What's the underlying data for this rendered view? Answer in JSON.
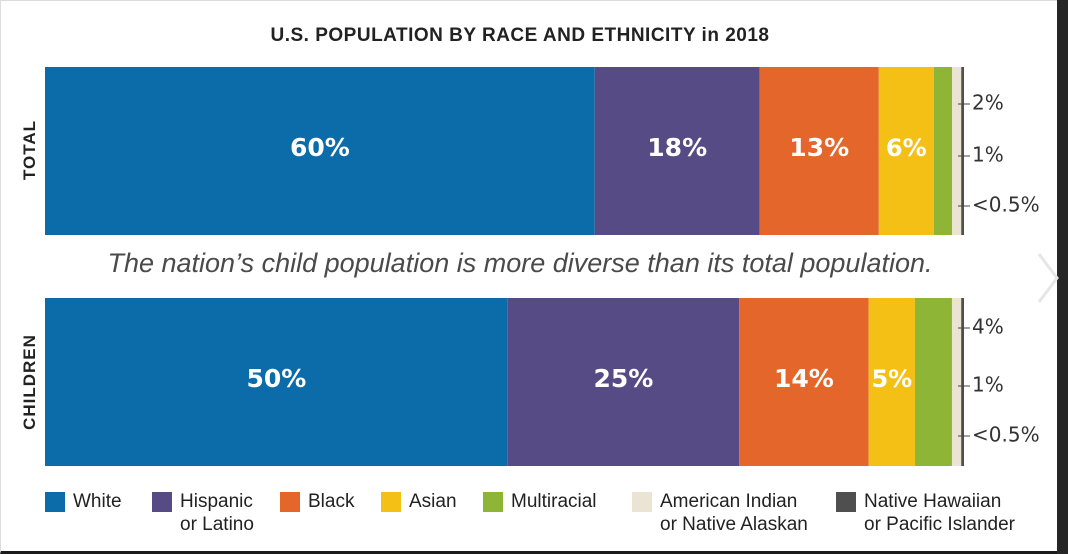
{
  "chart_data": {
    "type": "bar",
    "stacked": true,
    "orientation": "horizontal",
    "title": "U.S. POPULATION BY RACE AND ETHNICITY in 2018",
    "subtitle": "The nation’s child population is more diverse than its total population.",
    "categories": [
      "TOTAL",
      "CHILDREN"
    ],
    "series": [
      {
        "name": "White",
        "color": "#0c6ca9",
        "values": [
          60,
          50
        ],
        "labels": [
          "60%",
          "50%"
        ]
      },
      {
        "name": "Hispanic or Latino",
        "legend_lines": "Hispanic\nor Latino",
        "color": "#564b84",
        "values": [
          18,
          25
        ],
        "labels": [
          "18%",
          "25%"
        ]
      },
      {
        "name": "Black",
        "color": "#e4662a",
        "values": [
          13,
          14
        ],
        "labels": [
          "13%",
          "14%"
        ]
      },
      {
        "name": "Asian",
        "color": "#f4c015",
        "values": [
          6,
          5
        ],
        "labels": [
          "6%",
          "5%"
        ]
      },
      {
        "name": "Multiracial",
        "color": "#8fb536",
        "values": [
          2,
          4
        ],
        "labels": [
          "2%",
          "4%"
        ]
      },
      {
        "name": "American Indian or Native Alaskan",
        "legend_lines": "American Indian\nor Native Alaskan",
        "color": "#ebe3d3",
        "values": [
          1,
          1
        ],
        "labels": [
          "1%",
          "1%"
        ]
      },
      {
        "name": "Native Hawaiian or Pacific Islander",
        "legend_lines": "Native Hawaiian\nor Pacific Islander",
        "color": "#4f4f4f",
        "values": [
          0.3,
          0.3
        ],
        "labels": [
          "<0.5%",
          "<0.5%"
        ]
      }
    ],
    "legend_position": "bottom",
    "grid": false
  },
  "ui": {
    "next_arrow_icon": "chevron-right-icon"
  }
}
